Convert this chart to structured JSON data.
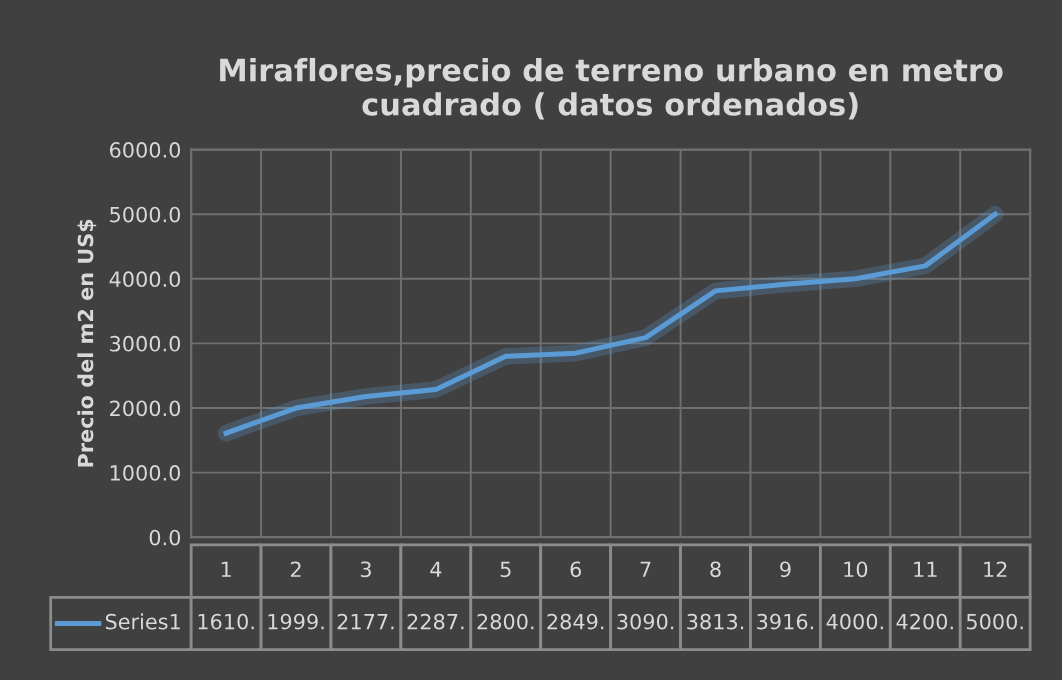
{
  "chart_data": {
    "type": "line",
    "title": "Miraflores,precio de terreno urbano en metro cuadrado ( datos ordenados)",
    "ylabel": "Precio del m2 en US$",
    "categories": [
      "1",
      "2",
      "3",
      "4",
      "5",
      "6",
      "7",
      "8",
      "9",
      "10",
      "11",
      "12"
    ],
    "series": [
      {
        "name": "Series1",
        "color": "#5b9bd5",
        "values": [
          1610,
          1999,
          2177,
          2287,
          2800,
          2849,
          3090,
          3813,
          3916,
          4000,
          4200,
          5000
        ],
        "value_labels": [
          "1610.",
          "1999.",
          "2177.",
          "2287.",
          "2800.",
          "2849.",
          "3090.",
          "3813.",
          "3916.",
          "4000.",
          "4200.",
          "5000."
        ]
      }
    ],
    "ylim": [
      0,
      6000
    ],
    "yticks": [
      {
        "value": 0,
        "label": "0.0"
      },
      {
        "value": 1000,
        "label": "1000.0"
      },
      {
        "value": 2000,
        "label": "2000.0"
      },
      {
        "value": 3000,
        "label": "3000.0"
      },
      {
        "value": 4000,
        "label": "4000.0"
      },
      {
        "value": 5000,
        "label": "5000.0"
      },
      {
        "value": 6000,
        "label": "6000.0"
      }
    ],
    "grid": true,
    "legend": "bottom"
  }
}
